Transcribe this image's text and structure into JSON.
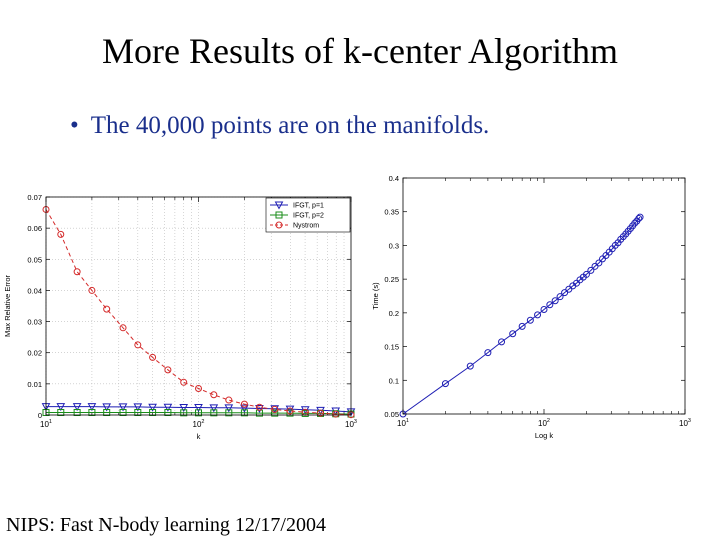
{
  "slide": {
    "title": "More Results of k-center Algorithm",
    "bullet_marker": "•",
    "bullet": "The 40,000 points are on the manifolds.",
    "footer": "NIPS: Fast N-body learning 12/17/2004"
  },
  "chart_data": [
    {
      "type": "line",
      "xscale": "log",
      "xlabel": "k",
      "ylabel": "Max Relative Error",
      "xlim": [
        10,
        1000
      ],
      "ylim": [
        0,
        0.07
      ],
      "xticks": [
        {
          "v": 10,
          "b": "10",
          "e": "1"
        },
        {
          "v": 100,
          "b": "10",
          "e": "2"
        },
        {
          "v": 1000,
          "b": "10",
          "e": "3"
        }
      ],
      "yticks": [
        0,
        0.01,
        0.02,
        0.03,
        0.04,
        0.05,
        0.06,
        0.07
      ],
      "grid": true,
      "legend_position": "top-right",
      "x": [
        10,
        12.5,
        16,
        20,
        25,
        32,
        40,
        50,
        63,
        80,
        100,
        126,
        158,
        200,
        251,
        316,
        398,
        501,
        631,
        794,
        1000
      ],
      "series": [
        {
          "name": "IFGT, p=1",
          "color": "#1f1fb4",
          "marker": "triangle-down",
          "linestyle": "solid",
          "values": [
            0.0027,
            0.0027,
            0.0027,
            0.0027,
            0.0026,
            0.0026,
            0.0026,
            0.0025,
            0.0025,
            0.0024,
            0.0024,
            0.0023,
            0.0023,
            0.0022,
            0.0021,
            0.002,
            0.0019,
            0.0017,
            0.0015,
            0.0013,
            0.001
          ]
        },
        {
          "name": "IFGT, p=2",
          "color": "#1a8c1a",
          "marker": "square",
          "linestyle": "solid",
          "values": [
            0.0008,
            0.0008,
            0.0008,
            0.0008,
            0.0008,
            0.0008,
            0.0008,
            0.0008,
            0.0008,
            0.0007,
            0.0007,
            0.0007,
            0.0007,
            0.0007,
            0.0006,
            0.0006,
            0.0006,
            0.0005,
            0.0005,
            0.0004,
            0.0003
          ]
        },
        {
          "name": "Nystrom",
          "color": "#d42a2a",
          "marker": "circle",
          "linestyle": "dashed",
          "values": [
            0.066,
            0.058,
            0.046,
            0.04,
            0.034,
            0.028,
            0.0225,
            0.0185,
            0.0145,
            0.0105,
            0.0085,
            0.0065,
            0.0048,
            0.0035,
            0.0025,
            0.0018,
            0.0013,
            0.0009,
            0.0006,
            0.0003,
            0.0001
          ]
        }
      ]
    },
    {
      "type": "line",
      "xscale": "log",
      "xlabel": "Log k",
      "ylabel": "Time (s)",
      "xlim": [
        10,
        1000
      ],
      "ylim": [
        0.05,
        0.4
      ],
      "xticks": [
        {
          "v": 10,
          "b": "10",
          "e": "1"
        },
        {
          "v": 100,
          "b": "10",
          "e": "2"
        },
        {
          "v": 1000,
          "b": "10",
          "e": "3"
        }
      ],
      "yticks": [
        0.05,
        0.1,
        0.15,
        0.2,
        0.25,
        0.3,
        0.35,
        0.4
      ],
      "yticklabels": [
        "0.05",
        "0.1",
        "0.15",
        "0.2",
        "0.25",
        "0.3",
        "0.35",
        "0.4"
      ],
      "grid": false,
      "series": [
        {
          "color": "#1f1fb4",
          "marker": "circle",
          "linestyle": "solid",
          "x": [
            10,
            20,
            30,
            40,
            50,
            60,
            70,
            80,
            90,
            100,
            110,
            120,
            130,
            140,
            150,
            160,
            170,
            180,
            190,
            200,
            215,
            230,
            245,
            260,
            275,
            290,
            305,
            320,
            335,
            350,
            365,
            380,
            395,
            410,
            425,
            440,
            455,
            470,
            480
          ],
          "values": [
            0.05,
            0.095,
            0.121,
            0.141,
            0.157,
            0.169,
            0.18,
            0.189,
            0.197,
            0.205,
            0.212,
            0.218,
            0.224,
            0.23,
            0.235,
            0.24,
            0.244,
            0.249,
            0.253,
            0.257,
            0.263,
            0.269,
            0.274,
            0.28,
            0.285,
            0.29,
            0.295,
            0.3,
            0.304,
            0.309,
            0.313,
            0.317,
            0.321,
            0.325,
            0.329,
            0.333,
            0.336,
            0.34,
            0.342
          ]
        }
      ]
    }
  ]
}
